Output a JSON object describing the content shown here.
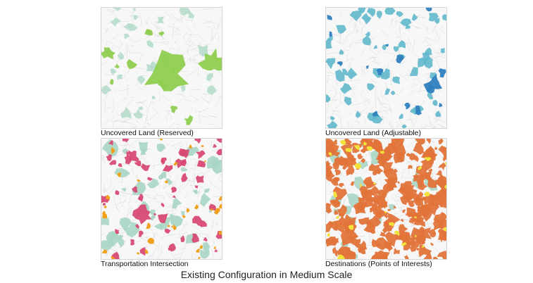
{
  "figure": {
    "title": "Existing Configuration in Medium Scale",
    "panels": [
      {
        "caption": "Uncovered Land (Reserved)",
        "colors": {
          "base": "#b5dccb",
          "accent": "#8fcd50"
        }
      },
      {
        "caption": "Uncovered Land (Adjustable)",
        "colors": {
          "base": "#5fb8cc",
          "accent": "#2e7fbf"
        }
      },
      {
        "caption": "Transportation Intersection",
        "colors": {
          "base": "#a9d5c4",
          "accent": "#d84a73",
          "secondary": "#f0a21e"
        }
      },
      {
        "caption": "Destinations (Points of Interests)",
        "colors": {
          "base": "#a9d5c4",
          "accent": "#e2743a",
          "secondary": "#f2e23a"
        }
      }
    ]
  }
}
